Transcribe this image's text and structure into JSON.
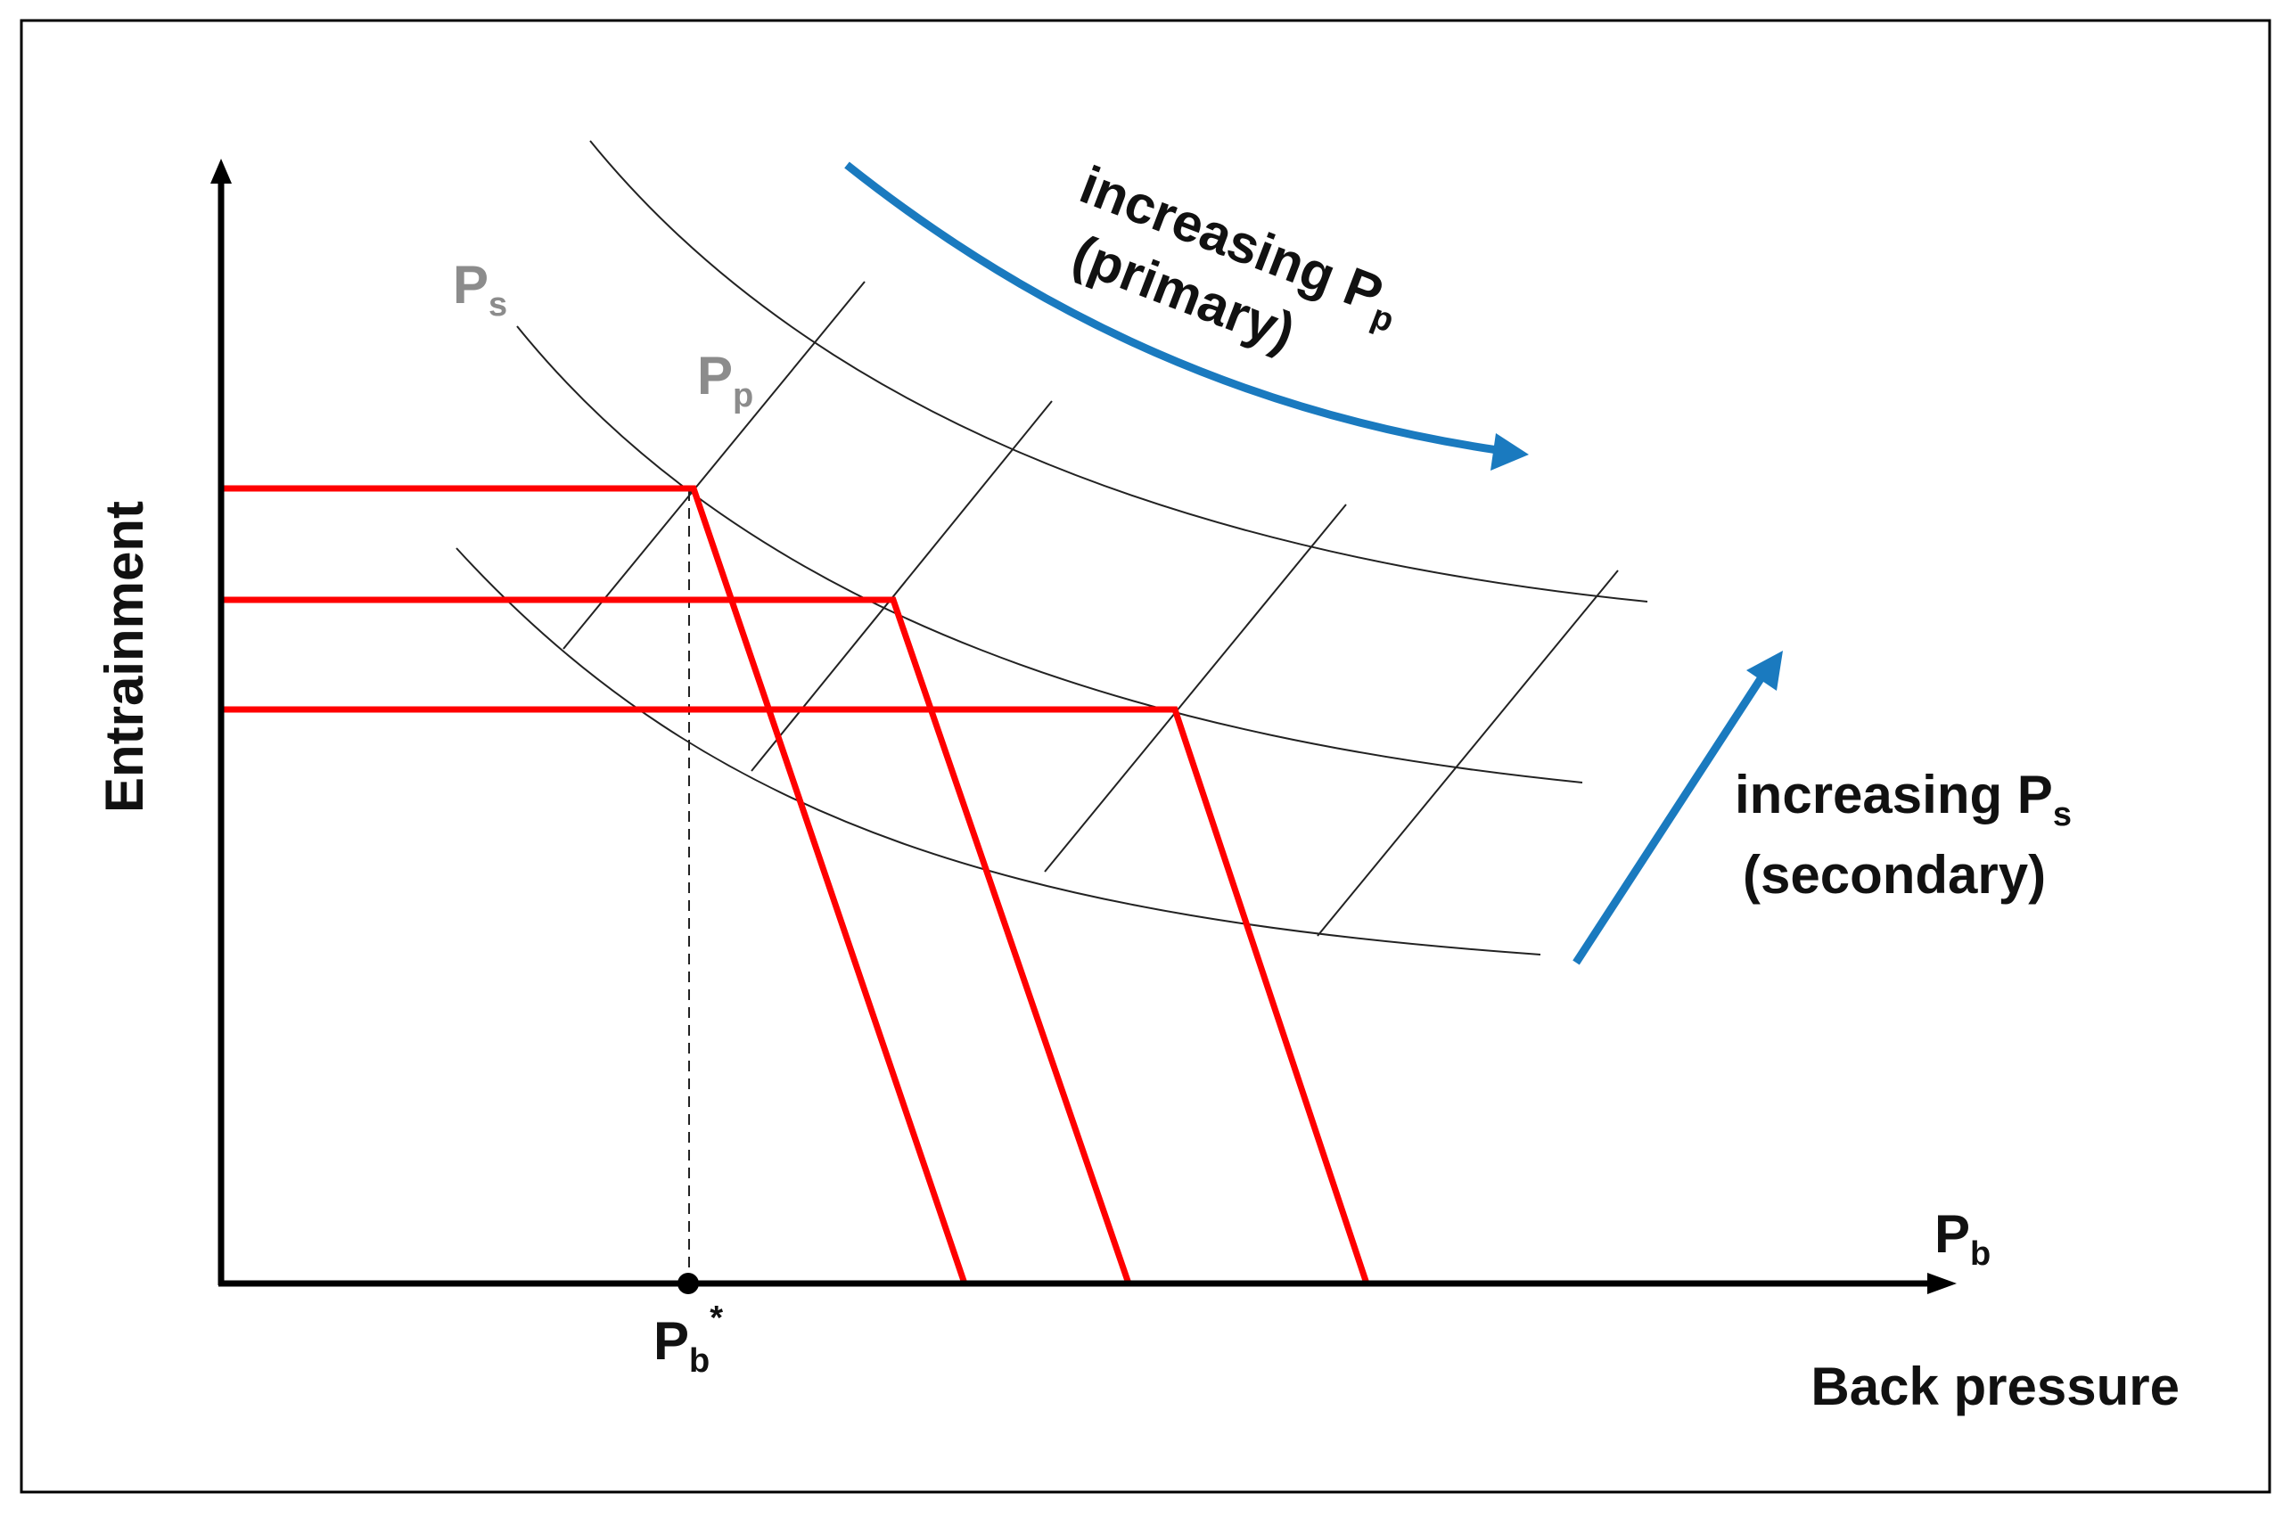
{
  "diagram": {
    "x_axis": {
      "label": "Back pressure",
      "symbol": "P",
      "symbol_sub": "b"
    },
    "y_axis": {
      "label": "Entrainment"
    },
    "critical_point": {
      "symbol": "P",
      "symbol_sub": "b",
      "symbol_sup": "*"
    },
    "curve_family_labels": {
      "secondary": {
        "symbol": "P",
        "sub": "s"
      },
      "primary": {
        "symbol": "P",
        "sub": "p"
      }
    },
    "annotations": {
      "primary": {
        "line1": "increasing P",
        "line1_sub": "p",
        "line2": "(primary)"
      },
      "secondary": {
        "line1": "increasing P",
        "line1_sub": "s",
        "line2": "(secondary)"
      }
    },
    "colors": {
      "characteristic_lines": "#ff0000",
      "arrows": "#1a7abf",
      "curves": "#222222",
      "axes": "#000000",
      "greyed_labels": "#8c8c8c"
    }
  }
}
